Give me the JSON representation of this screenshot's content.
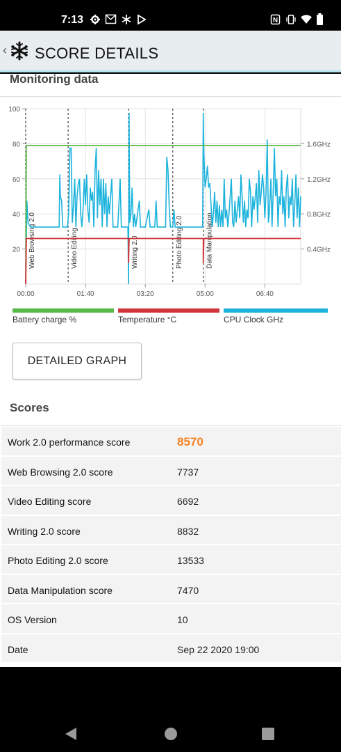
{
  "status_bar": {
    "time": "7:13",
    "left_icons": [
      "settings-icon",
      "gmail-icon",
      "snowflake-icon",
      "play-store-icon"
    ],
    "right_icons": [
      "nfc-icon",
      "vibrate-icon",
      "wifi-icon",
      "battery-icon"
    ]
  },
  "app_bar": {
    "title": "SCORE DETAILS",
    "back_icon": "chevron-left-icon",
    "logo_icon": "snowflake-logo-icon"
  },
  "monitoring": {
    "heading": "Monitoring data"
  },
  "chart_data": {
    "type": "line",
    "x_ticks": [
      "00:00",
      "01:40",
      "03:20",
      "05:00",
      "06:40"
    ],
    "x_tick_seconds": [
      0,
      100,
      200,
      300,
      400
    ],
    "x_range": [
      0,
      460
    ],
    "y_left_ticks": [
      "100",
      "80",
      "60",
      "40",
      "20"
    ],
    "y_left_values": [
      100,
      80,
      60,
      40,
      20
    ],
    "y_left_range": [
      0,
      100
    ],
    "y_right_ticks": [
      "1.6GHz",
      "1.2GHz",
      "0.8GHz",
      "0.4GHz"
    ],
    "y_right_values": [
      1.6,
      1.2,
      0.8,
      0.4
    ],
    "y_right_range": [
      0,
      2.0
    ],
    "grid": true,
    "segments": [
      {
        "label": "Web Browsing 2.0",
        "start": 0
      },
      {
        "label": "Video Editing",
        "start": 71
      },
      {
        "label": "Writing 2.0",
        "start": 172
      },
      {
        "label": "Photo Editing 2.0",
        "start": 246
      },
      {
        "label": "Data Manipulation",
        "start": 297
      }
    ],
    "series": [
      {
        "name": "Battery charge %",
        "color": "#57b947",
        "axis": "left",
        "points": [
          [
            0,
            0
          ],
          [
            1,
            79
          ],
          [
            460,
            79
          ]
        ]
      },
      {
        "name": "Temperature °C",
        "color": "#d2343b",
        "axis": "left",
        "points": [
          [
            0,
            0
          ],
          [
            1,
            26
          ],
          [
            172,
            26
          ],
          [
            172,
            12
          ],
          [
            173,
            26
          ],
          [
            297,
            26
          ],
          [
            297,
            12
          ],
          [
            298,
            26
          ],
          [
            460,
            26
          ]
        ]
      },
      {
        "name": "CPU Clock GHz",
        "color": "#1cb3dd",
        "axis": "right",
        "points": [
          [
            0,
            0.0
          ],
          [
            2,
            0.95
          ],
          [
            4,
            0.7
          ],
          [
            8,
            0.65
          ],
          [
            14,
            0.65
          ],
          [
            20,
            0.65
          ],
          [
            30,
            0.65
          ],
          [
            40,
            0.65
          ],
          [
            50,
            0.65
          ],
          [
            56,
            0.65
          ],
          [
            57,
            1.25
          ],
          [
            58,
            1.0
          ],
          [
            60,
            0.95
          ],
          [
            62,
            0.65
          ],
          [
            66,
            0.65
          ],
          [
            70,
            0.65
          ],
          [
            72,
            0.85
          ],
          [
            74,
            1.55
          ],
          [
            76,
            1.55
          ],
          [
            78,
            0.7
          ],
          [
            80,
            0.9
          ],
          [
            82,
            1.2
          ],
          [
            84,
            0.65
          ],
          [
            86,
            1.0
          ],
          [
            88,
            1.15
          ],
          [
            90,
            1.2
          ],
          [
            92,
            0.8
          ],
          [
            94,
            0.65
          ],
          [
            96,
            0.85
          ],
          [
            98,
            1.2
          ],
          [
            100,
            0.9
          ],
          [
            102,
            1.25
          ],
          [
            104,
            0.85
          ],
          [
            106,
            0.7
          ],
          [
            108,
            1.1
          ],
          [
            110,
            0.95
          ],
          [
            112,
            1.05
          ],
          [
            114,
            0.65
          ],
          [
            116,
            1.3
          ],
          [
            118,
            1.55
          ],
          [
            120,
            0.75
          ],
          [
            122,
            1.3
          ],
          [
            124,
            0.9
          ],
          [
            126,
            1.2
          ],
          [
            128,
            0.65
          ],
          [
            130,
            1.2
          ],
          [
            132,
            0.8
          ],
          [
            134,
            1.15
          ],
          [
            136,
            0.65
          ],
          [
            138,
            1.0
          ],
          [
            140,
            0.8
          ],
          [
            142,
            1.0
          ],
          [
            144,
            1.2
          ],
          [
            146,
            0.65
          ],
          [
            150,
            0.65
          ],
          [
            154,
            0.65
          ],
          [
            158,
            1.2
          ],
          [
            160,
            0.65
          ],
          [
            164,
            0.65
          ],
          [
            168,
            0.65
          ],
          [
            171,
            0.65
          ],
          [
            172,
            0.0
          ],
          [
            173,
            1.95
          ],
          [
            174,
            0.7
          ],
          [
            176,
            0.8
          ],
          [
            178,
            1.1
          ],
          [
            180,
            0.65
          ],
          [
            182,
            0.8
          ],
          [
            184,
            0.65
          ],
          [
            190,
            0.95
          ],
          [
            192,
            0.65
          ],
          [
            196,
            0.65
          ],
          [
            200,
            0.65
          ],
          [
            206,
            0.85
          ],
          [
            208,
            0.65
          ],
          [
            212,
            0.65
          ],
          [
            216,
            0.65
          ],
          [
            218,
            0.95
          ],
          [
            220,
            0.65
          ],
          [
            226,
            0.65
          ],
          [
            234,
            0.65
          ],
          [
            236,
            1.45
          ],
          [
            238,
            1.3
          ],
          [
            240,
            0.9
          ],
          [
            242,
            0.65
          ],
          [
            245,
            0.65
          ],
          [
            246,
            0.65
          ],
          [
            248,
            0.85
          ],
          [
            250,
            0.65
          ],
          [
            254,
            0.65
          ],
          [
            258,
            0.65
          ],
          [
            262,
            0.65
          ],
          [
            266,
            0.65
          ],
          [
            272,
            0.65
          ],
          [
            280,
            0.65
          ],
          [
            288,
            0.65
          ],
          [
            296,
            0.65
          ],
          [
            297,
            1.95
          ],
          [
            298,
            1.5
          ],
          [
            300,
            1.1
          ],
          [
            302,
            1.2
          ],
          [
            304,
            1.35
          ],
          [
            306,
            1.1
          ],
          [
            308,
            1.15
          ],
          [
            310,
            0.9
          ],
          [
            312,
            0.65
          ],
          [
            314,
            0.8
          ],
          [
            316,
            1.05
          ],
          [
            318,
            0.7
          ],
          [
            320,
            0.95
          ],
          [
            322,
            0.65
          ],
          [
            324,
            0.9
          ],
          [
            326,
            0.65
          ],
          [
            328,
            0.85
          ],
          [
            330,
            0.65
          ],
          [
            332,
            1.2
          ],
          [
            334,
            0.75
          ],
          [
            336,
            0.85
          ],
          [
            338,
            0.65
          ],
          [
            340,
            0.8
          ],
          [
            342,
            1.0
          ],
          [
            344,
            1.2
          ],
          [
            346,
            0.7
          ],
          [
            348,
            0.65
          ],
          [
            350,
            0.95
          ],
          [
            352,
            0.7
          ],
          [
            354,
            0.85
          ],
          [
            356,
            1.0
          ],
          [
            358,
            0.75
          ],
          [
            360,
            1.25
          ],
          [
            362,
            1.0
          ],
          [
            364,
            0.7
          ],
          [
            366,
            0.95
          ],
          [
            368,
            0.65
          ],
          [
            370,
            0.85
          ],
          [
            372,
            0.75
          ],
          [
            374,
            1.2
          ],
          [
            376,
            1.05
          ],
          [
            378,
            0.65
          ],
          [
            380,
            1.0
          ],
          [
            382,
            0.85
          ],
          [
            384,
            1.0
          ],
          [
            386,
            1.15
          ],
          [
            388,
            0.7
          ],
          [
            390,
            1.3
          ],
          [
            392,
            0.9
          ],
          [
            394,
            1.05
          ],
          [
            396,
            1.25
          ],
          [
            398,
            1.1
          ],
          [
            400,
            0.75
          ],
          [
            402,
            1.05
          ],
          [
            404,
            1.65
          ],
          [
            406,
            0.7
          ],
          [
            408,
            0.85
          ],
          [
            410,
            1.2
          ],
          [
            412,
            0.65
          ],
          [
            414,
            1.05
          ],
          [
            416,
            1.55
          ],
          [
            418,
            1.0
          ],
          [
            420,
            1.2
          ],
          [
            422,
            0.65
          ],
          [
            424,
            1.0
          ],
          [
            426,
            0.9
          ],
          [
            428,
            1.3
          ],
          [
            430,
            0.8
          ],
          [
            432,
            1.0
          ],
          [
            434,
            0.65
          ],
          [
            436,
            1.1
          ],
          [
            438,
            1.25
          ],
          [
            440,
            0.75
          ],
          [
            442,
            1.0
          ],
          [
            444,
            0.9
          ],
          [
            446,
            1.2
          ],
          [
            448,
            0.65
          ],
          [
            450,
            0.9
          ],
          [
            452,
            1.25
          ],
          [
            454,
            0.75
          ],
          [
            456,
            1.1
          ],
          [
            458,
            0.65
          ],
          [
            460,
            1.0
          ]
        ]
      }
    ]
  },
  "legend": [
    {
      "label": "Battery charge %",
      "color": "#57b947"
    },
    {
      "label": "Temperature °C",
      "color": "#d2343b"
    },
    {
      "label": "CPU Clock GHz",
      "color": "#1cb3dd"
    }
  ],
  "detailed_graph_button": "DETAILED GRAPH",
  "scores": {
    "heading": "Scores",
    "rows": [
      {
        "label": "Work 2.0 performance score",
        "value": "8570",
        "highlight": true
      },
      {
        "label": "Web Browsing 2.0 score",
        "value": "7737"
      },
      {
        "label": "Video Editing score",
        "value": "6692"
      },
      {
        "label": "Writing 2.0 score",
        "value": "8832"
      },
      {
        "label": "Photo Editing 2.0 score",
        "value": "13533"
      },
      {
        "label": "Data Manipulation score",
        "value": "7470"
      },
      {
        "label": "OS Version",
        "value": "10"
      },
      {
        "label": "Date",
        "value": "Sep 22 2020 19:00"
      }
    ]
  },
  "nav_bar": {
    "buttons": [
      "back-triangle-icon",
      "home-circle-icon",
      "recents-square-icon"
    ]
  }
}
